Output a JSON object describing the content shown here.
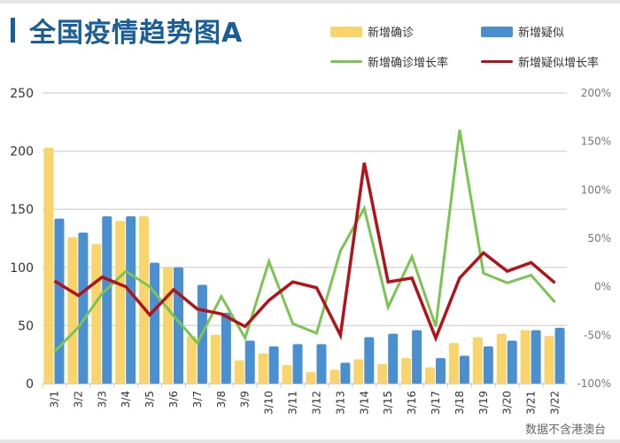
{
  "header": {
    "title": "全国疫情趋势图A"
  },
  "legend": {
    "items": [
      {
        "label": "新增确诊",
        "type": "bar",
        "color": "#f9d46b"
      },
      {
        "label": "新增疑似",
        "type": "bar",
        "color": "#4a8fd0"
      },
      {
        "label": "新增确诊增长率",
        "type": "line",
        "color": "#7cc452"
      },
      {
        "label": "新增疑似增长率",
        "type": "line",
        "color": "#b01319"
      }
    ]
  },
  "footer": {
    "note": "数据不含港澳台"
  },
  "colors": {
    "title": "#1a5e96",
    "confirmed": "#f9d46b",
    "suspected": "#4a8fd0",
    "confirmed_rate": "#7cc452",
    "suspected_rate": "#b01319",
    "grid": "#d9d9d9"
  },
  "chart_data": {
    "type": "bar+line",
    "title": "全国疫情趋势图A",
    "xlabel": "",
    "ylabel": "",
    "categories": [
      "3/1",
      "3/2",
      "3/3",
      "3/4",
      "3/5",
      "3/6",
      "3/7",
      "3/8",
      "3/9",
      "3/10",
      "3/11",
      "3/12",
      "3/13",
      "3/14",
      "3/15",
      "3/16",
      "3/17",
      "3/18",
      "3/19",
      "3/20",
      "3/21",
      "3/22"
    ],
    "series": [
      {
        "name": "新增确诊",
        "type": "bar",
        "axis": "left",
        "values": [
          203,
          126,
          120,
          140,
          144,
          100,
          41,
          42,
          20,
          26,
          16,
          10,
          12,
          21,
          17,
          22,
          14,
          35,
          40,
          43,
          46,
          41
        ]
      },
      {
        "name": "新增疑似",
        "type": "bar",
        "axis": "left",
        "values": [
          142,
          130,
          144,
          144,
          104,
          100,
          85,
          61,
          37,
          32,
          34,
          34,
          18,
          40,
          43,
          46,
          22,
          24,
          32,
          37,
          46,
          48
        ]
      },
      {
        "name": "新增确诊增长率",
        "type": "line",
        "axis": "right",
        "unit": "%",
        "values": [
          -67,
          -42,
          -7,
          16,
          0,
          -30,
          -58,
          -10,
          -53,
          26,
          -38,
          -48,
          37,
          81,
          -21,
          31,
          -41,
          162,
          14,
          4,
          12,
          -16
        ]
      },
      {
        "name": "新增疑似增长率",
        "type": "line",
        "axis": "right",
        "unit": "%",
        "values": [
          6,
          -9,
          10,
          0,
          -29,
          -3,
          -23,
          -28,
          -41,
          -14,
          5,
          -1,
          -50,
          128,
          5,
          9,
          -53,
          9,
          35,
          16,
          25,
          4
        ]
      }
    ],
    "left_axis": {
      "ylim": [
        0,
        250
      ],
      "ticks": [
        "0",
        "50",
        "100",
        "150",
        "200",
        "250"
      ]
    },
    "right_axis": {
      "ylim": [
        -100,
        200
      ],
      "ticks": [
        "-100%",
        "-50%",
        "0%",
        "50%",
        "100%",
        "150%",
        "200%"
      ]
    },
    "grid": true,
    "legend_position": "top-right"
  }
}
